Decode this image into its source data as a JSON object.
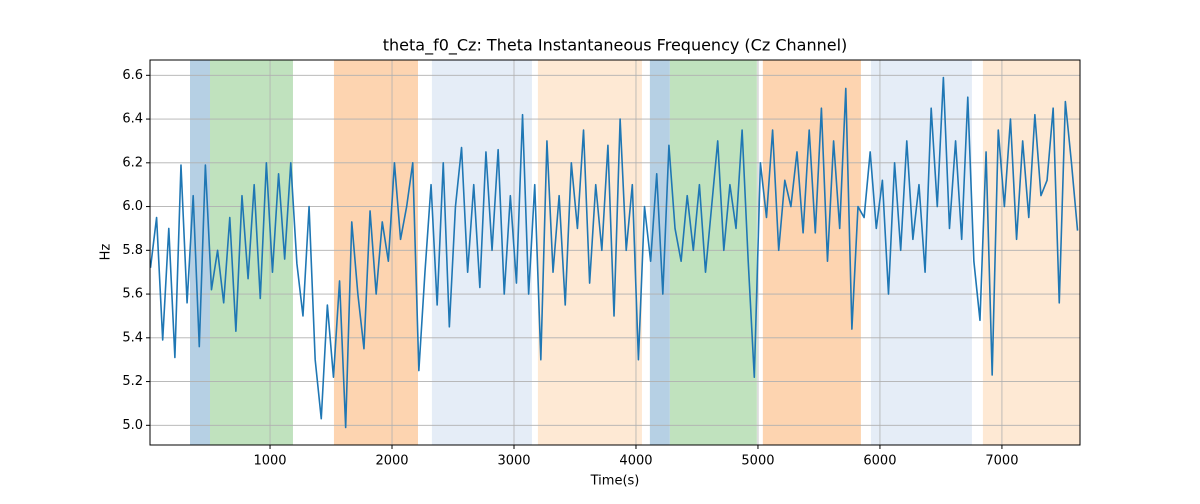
{
  "chart_data": {
    "type": "line",
    "title": "theta_f0_Cz: Theta Instantaneous Frequency (Cz Channel)",
    "xlabel": "Time(s)",
    "ylabel": "Hz",
    "color": "#1f77b4",
    "grid": true,
    "xlim": [
      16,
      7640
    ],
    "ylim": [
      4.91,
      6.67
    ],
    "xticks": [
      1000,
      2000,
      3000,
      4000,
      5000,
      6000,
      7000
    ],
    "yticks": [
      {
        "value": 5,
        "label": "5.0"
      },
      5.2,
      5.4,
      5.6,
      5.8,
      {
        "value": 6,
        "label": "6.0"
      },
      6.2,
      6.4,
      6.6
    ],
    "spans": [
      {
        "start": 344,
        "end": 508,
        "color": "#b6d0e4"
      },
      {
        "start": 508,
        "end": 1188,
        "color": "#c0e2be"
      },
      {
        "start": 1524,
        "end": 2213,
        "color": "#fdd4b0"
      },
      {
        "start": 2327,
        "end": 3147,
        "color": "#e5edf7"
      },
      {
        "start": 3196,
        "end": 4049,
        "color": "#fee9d4"
      },
      {
        "start": 4114,
        "end": 4278,
        "color": "#b6d0e4"
      },
      {
        "start": 4278,
        "end": 4991,
        "color": "#c0e2be"
      },
      {
        "start": 5040,
        "end": 5844,
        "color": "#fdd4b0"
      },
      {
        "start": 5926,
        "end": 6754,
        "color": "#e5edf7"
      },
      {
        "start": 6844,
        "end": 7640,
        "color": "#fee9d4"
      }
    ],
    "x": [
      20,
      70,
      120,
      170,
      220,
      270,
      320,
      370,
      420,
      470,
      520,
      570,
      620,
      670,
      720,
      770,
      820,
      870,
      920,
      970,
      1020,
      1070,
      1120,
      1170,
      1220,
      1270,
      1320,
      1370,
      1420,
      1470,
      1520,
      1570,
      1620,
      1670,
      1720,
      1770,
      1820,
      1870,
      1920,
      1970,
      2020,
      2070,
      2120,
      2170,
      2220,
      2270,
      2320,
      2370,
      2420,
      2470,
      2520,
      2570,
      2620,
      2670,
      2720,
      2770,
      2820,
      2870,
      2920,
      2970,
      3020,
      3070,
      3120,
      3170,
      3220,
      3270,
      3320,
      3370,
      3420,
      3470,
      3520,
      3570,
      3620,
      3670,
      3720,
      3770,
      3820,
      3870,
      3920,
      3970,
      4020,
      4070,
      4120,
      4170,
      4220,
      4270,
      4320,
      4370,
      4420,
      4470,
      4520,
      4570,
      4620,
      4670,
      4720,
      4770,
      4820,
      4870,
      4920,
      4970,
      5020,
      5070,
      5120,
      5170,
      5220,
      5270,
      5320,
      5370,
      5420,
      5470,
      5520,
      5570,
      5620,
      5670,
      5720,
      5770,
      5820,
      5870,
      5920,
      5970,
      6020,
      6070,
      6120,
      6170,
      6220,
      6270,
      6320,
      6370,
      6420,
      6470,
      6520,
      6570,
      6620,
      6670,
      6720,
      6770,
      6820,
      6870,
      6920,
      6970,
      7020,
      7070,
      7120,
      7170,
      7220,
      7270,
      7320,
      7370,
      7420,
      7470,
      7520,
      7570,
      7620
    ],
    "values": [
      5.72,
      5.95,
      5.39,
      5.9,
      5.31,
      6.19,
      5.56,
      6.05,
      5.36,
      6.19,
      5.62,
      5.8,
      5.56,
      5.95,
      5.43,
      6.05,
      5.67,
      6.1,
      5.58,
      6.2,
      5.7,
      6.15,
      5.76,
      6.2,
      5.74,
      5.5,
      6.0,
      5.3,
      5.03,
      5.55,
      5.22,
      5.66,
      4.99,
      5.93,
      5.6,
      5.35,
      5.98,
      5.6,
      5.93,
      5.75,
      6.2,
      5.85,
      6.0,
      6.2,
      5.25,
      5.7,
      6.1,
      5.55,
      6.2,
      5.45,
      6.0,
      6.27,
      5.7,
      6.1,
      5.63,
      6.25,
      5.8,
      6.26,
      5.6,
      6.05,
      5.65,
      6.42,
      5.6,
      6.1,
      5.3,
      6.3,
      5.7,
      6.05,
      5.55,
      6.2,
      5.9,
      6.35,
      5.65,
      6.1,
      5.8,
      6.28,
      5.5,
      6.4,
      5.8,
      6.1,
      5.3,
      6.0,
      5.75,
      6.15,
      5.6,
      6.28,
      5.9,
      5.75,
      6.05,
      5.8,
      6.1,
      5.7,
      6.0,
      6.3,
      5.8,
      6.1,
      5.9,
      6.35,
      5.75,
      5.22,
      6.2,
      5.95,
      6.35,
      5.8,
      6.12,
      6.0,
      6.25,
      5.88,
      6.35,
      5.88,
      6.45,
      5.75,
      6.3,
      5.9,
      6.54,
      5.44,
      6.0,
      5.95,
      6.25,
      5.9,
      6.12,
      5.6,
      6.2,
      5.8,
      6.3,
      5.85,
      6.1,
      5.7,
      6.45,
      6.0,
      6.59,
      5.9,
      6.3,
      5.85,
      6.5,
      5.75,
      5.48,
      6.25,
      5.23,
      6.35,
      6.0,
      6.4,
      5.85,
      6.3,
      5.95,
      6.42,
      6.05,
      6.12,
      6.45,
      5.56,
      6.48,
      6.2,
      5.89
    ]
  }
}
